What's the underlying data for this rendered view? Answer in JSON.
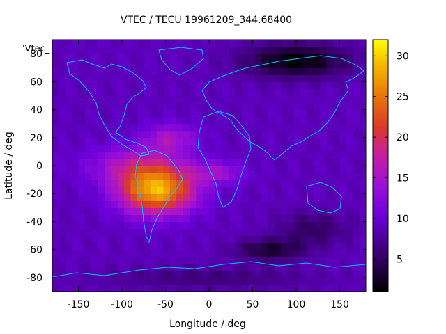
{
  "chart_data": {
    "type": "heatmap",
    "title": "VTEC / TECU 19961209_344.68400",
    "xlabel": "Longitude / deg",
    "ylabel": "Latitude / deg",
    "xlim": [
      -180,
      180
    ],
    "ylim": [
      -90,
      90
    ],
    "xticks": [
      -150,
      -100,
      -50,
      0,
      50,
      100,
      150
    ],
    "yticks": [
      -80,
      -60,
      -40,
      -20,
      0,
      20,
      40,
      60,
      80
    ],
    "colorbar": {
      "range": [
        1,
        32
      ],
      "ticks": [
        5,
        10,
        15,
        20,
        25,
        30
      ]
    },
    "key_label": "'Vtec_",
    "grid": false,
    "overlay": "coastlines",
    "description_levels": {
      "background_tecu": 9,
      "peak_tecu": 31,
      "peak_location": {
        "lon": -55,
        "lat": -18
      }
    },
    "features": [
      {
        "lon": -60,
        "lat": -18,
        "amp": 19,
        "slon": 42,
        "slat": 16
      },
      {
        "lon": -80,
        "lat": 0,
        "amp": 7,
        "slon": 55,
        "slat": 14
      },
      {
        "lon": -45,
        "lat": 20,
        "amp": 6,
        "slon": 30,
        "slat": 10
      },
      {
        "lon": 10,
        "lat": -5,
        "amp": 5,
        "slon": 30,
        "slat": 8
      },
      {
        "lon": 100,
        "lat": 75,
        "amp": -8,
        "slon": 60,
        "slat": 12
      },
      {
        "lon": 70,
        "lat": -60,
        "amp": -6,
        "slon": 40,
        "slat": 8
      },
      {
        "lon": 120,
        "lat": -45,
        "amp": -4,
        "slon": 40,
        "slat": 12
      },
      {
        "lon": 0,
        "lat": -80,
        "amp": -3,
        "slon": 120,
        "slat": 8
      }
    ]
  }
}
